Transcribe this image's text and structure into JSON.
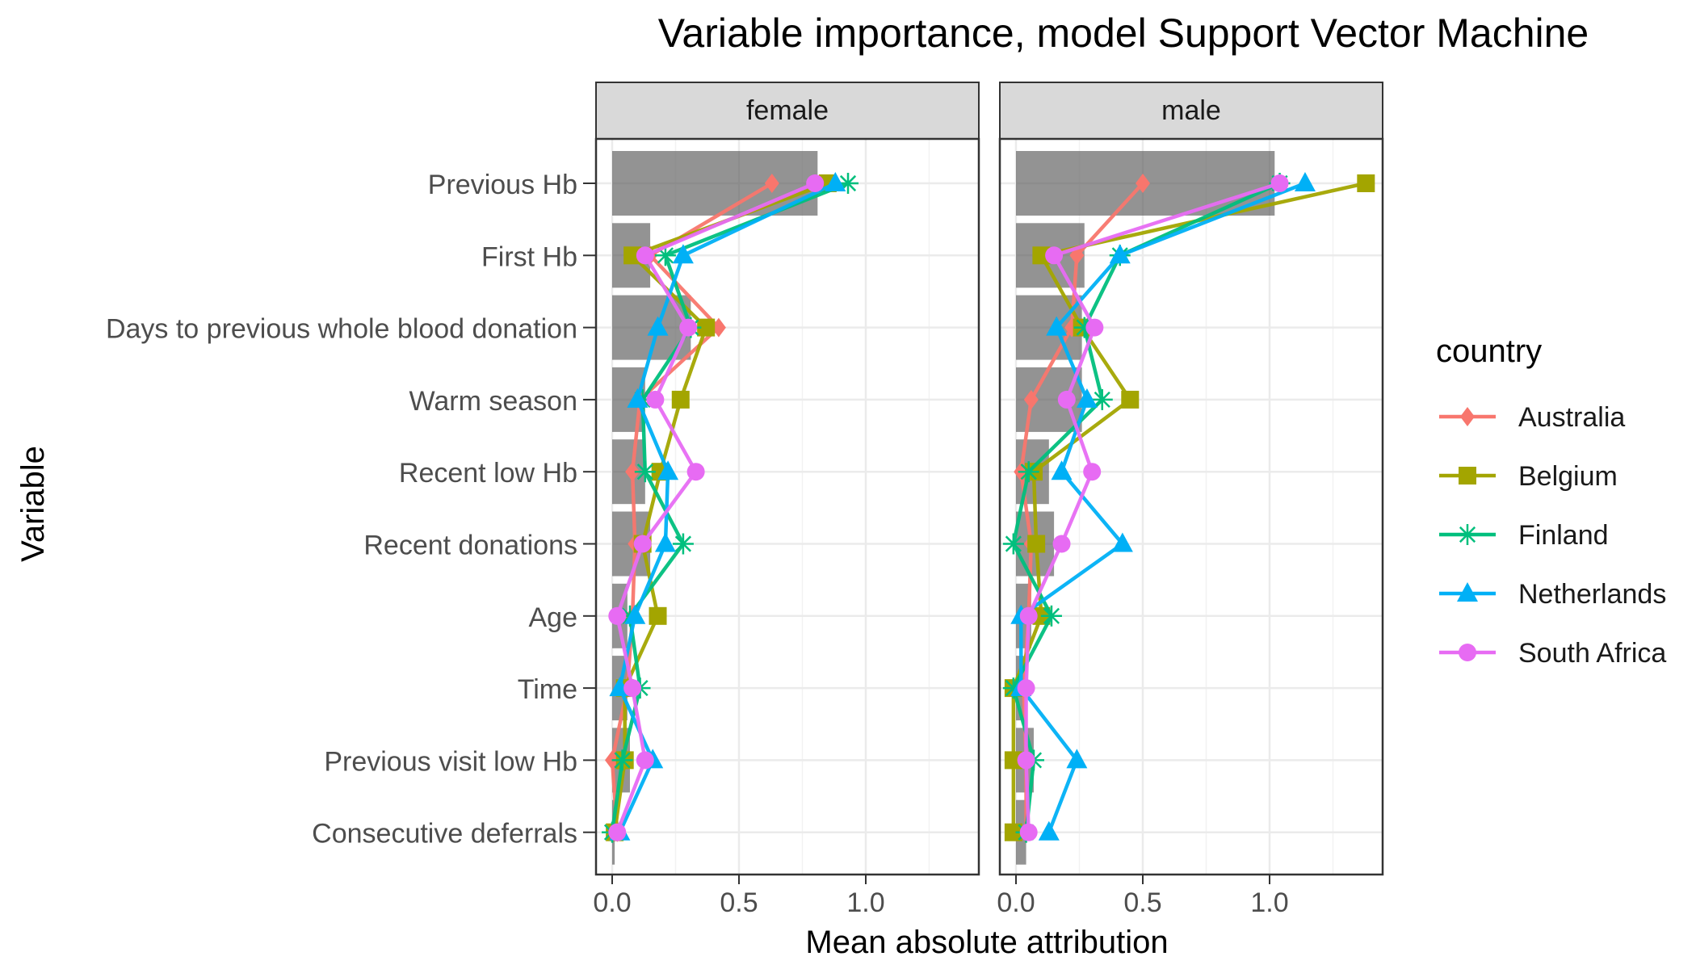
{
  "chart_data": {
    "type": "bar",
    "title": "Variable importance, model Support Vector Machine",
    "xlabel": "Mean absolute attribution",
    "ylabel": "Variable",
    "xlim": [
      -0.06,
      1.45
    ],
    "x_ticks": [
      0.0,
      0.5,
      1.0
    ],
    "x_tick_labels": [
      "0.0",
      "0.5",
      "1.0"
    ],
    "grid": true,
    "legend_title": "country",
    "legend_position": "right",
    "variables": [
      "Previous Hb",
      "First Hb",
      "Days to previous whole blood donation",
      "Warm season",
      "Recent low Hb",
      "Recent donations",
      "Age",
      "Time",
      "Previous visit low Hb",
      "Consecutive deferrals"
    ],
    "countries": [
      {
        "name": "Australia",
        "color": "#F8766D",
        "marker": "diamond"
      },
      {
        "name": "Belgium",
        "color": "#A3A500",
        "marker": "square"
      },
      {
        "name": "Finland",
        "color": "#00BF7D",
        "marker": "asterisk"
      },
      {
        "name": "Netherlands",
        "color": "#00B0F6",
        "marker": "triangle"
      },
      {
        "name": "South Africa",
        "color": "#E76BF3",
        "marker": "circle"
      }
    ],
    "panels": [
      {
        "label": "female",
        "bar_values": [
          0.81,
          0.15,
          0.31,
          0.13,
          0.13,
          0.15,
          0.06,
          0.06,
          0.07,
          0.01
        ],
        "series": [
          {
            "name": "Australia",
            "values": [
              0.63,
              0.15,
              0.42,
              0.11,
              0.08,
              0.09,
              0.08,
              0.06,
              0.0,
              0.02
            ]
          },
          {
            "name": "Belgium",
            "values": [
              0.85,
              0.08,
              0.37,
              0.27,
              0.19,
              0.12,
              0.18,
              0.05,
              0.05,
              0.01
            ]
          },
          {
            "name": "Finland",
            "values": [
              0.93,
              0.21,
              0.31,
              0.12,
              0.13,
              0.28,
              0.07,
              0.11,
              0.04,
              0.0
            ]
          },
          {
            "name": "Netherlands",
            "values": [
              0.88,
              0.28,
              0.18,
              0.1,
              0.22,
              0.21,
              0.09,
              0.03,
              0.16,
              0.03
            ]
          },
          {
            "name": "South Africa",
            "values": [
              0.8,
              0.13,
              0.3,
              0.17,
              0.33,
              0.12,
              0.02,
              0.08,
              0.13,
              0.02
            ]
          }
        ]
      },
      {
        "label": "male",
        "bar_values": [
          1.02,
          0.27,
          0.26,
          0.26,
          0.13,
          0.15,
          0.06,
          0.03,
          0.07,
          0.04
        ],
        "series": [
          {
            "name": "Australia",
            "values": [
              0.5,
              0.24,
              0.22,
              0.06,
              0.02,
              0.06,
              0.05,
              0.03,
              0.04,
              0.04
            ]
          },
          {
            "name": "Belgium",
            "values": [
              1.38,
              0.1,
              0.26,
              0.45,
              0.07,
              0.08,
              0.1,
              -0.01,
              -0.01,
              -0.01
            ]
          },
          {
            "name": "Finland",
            "values": [
              1.04,
              0.41,
              0.27,
              0.34,
              0.05,
              -0.01,
              0.14,
              -0.01,
              0.07,
              0.04
            ]
          },
          {
            "name": "Netherlands",
            "values": [
              1.14,
              0.41,
              0.16,
              0.28,
              0.18,
              0.42,
              0.02,
              0.02,
              0.24,
              0.13
            ]
          },
          {
            "name": "South Africa",
            "values": [
              1.04,
              0.15,
              0.31,
              0.2,
              0.3,
              0.18,
              0.05,
              0.04,
              0.04,
              0.05
            ]
          }
        ]
      }
    ]
  }
}
